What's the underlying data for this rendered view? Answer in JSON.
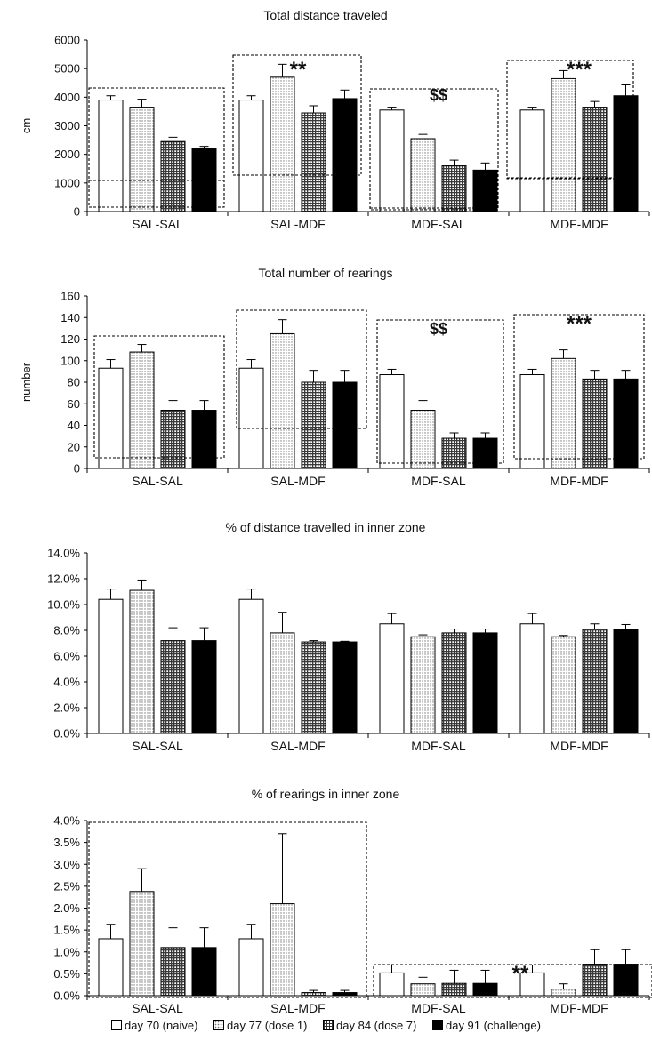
{
  "chart_data": [
    {
      "type": "bar",
      "title": "Total distance traveled",
      "ylabel": "cm",
      "ylim": [
        0,
        6000
      ],
      "yticks": [
        "0",
        "1000",
        "2000",
        "3000",
        "4000",
        "5000",
        "6000"
      ],
      "categories": [
        "SAL-SAL",
        "SAL-MDF",
        "MDF-SAL",
        "MDF-MDF"
      ],
      "series": [
        {
          "name": "day 70 (naive)",
          "values": [
            3900,
            3900,
            3550,
            3550
          ],
          "errors": [
            150,
            150,
            100,
            100
          ]
        },
        {
          "name": "day 77 (dose 1)",
          "values": [
            3650,
            4700,
            2550,
            4650
          ],
          "errors": [
            280,
            450,
            150,
            280
          ]
        },
        {
          "name": "day 84 (dose 7)",
          "values": [
            2450,
            3450,
            1600,
            3650
          ],
          "errors": [
            150,
            250,
            200,
            200
          ]
        },
        {
          "name": "day 91 (challenge)",
          "values": [
            2200,
            3950,
            1450,
            4050
          ],
          "errors": [
            80,
            300,
            250,
            380
          ]
        }
      ],
      "annotations": [
        {
          "text": "",
          "group": 0
        },
        {
          "text": "**",
          "group": 1
        },
        {
          "text": "$$",
          "group": 2
        },
        {
          "text": "***",
          "group": 3
        }
      ]
    },
    {
      "type": "bar",
      "title": "Total number of rearings",
      "ylabel": "number",
      "ylim": [
        0,
        160
      ],
      "yticks": [
        "0",
        "20",
        "40",
        "60",
        "80",
        "100",
        "120",
        "140",
        "160"
      ],
      "categories": [
        "SAL-SAL",
        "SAL-MDF",
        "MDF-SAL",
        "MDF-MDF"
      ],
      "series": [
        {
          "name": "day 70 (naive)",
          "values": [
            93,
            93,
            87,
            87
          ],
          "errors": [
            8,
            8,
            5,
            5
          ]
        },
        {
          "name": "day 77 (dose 1)",
          "values": [
            108,
            125,
            54,
            102
          ],
          "errors": [
            7,
            13,
            9,
            8
          ]
        },
        {
          "name": "day 84 (dose 7)",
          "values": [
            54,
            80,
            28,
            83
          ],
          "errors": [
            9,
            11,
            5,
            8
          ]
        },
        {
          "name": "day 91 (challenge)",
          "values": [
            54,
            80,
            28,
            83
          ],
          "errors": [
            9,
            11,
            5,
            8
          ]
        }
      ],
      "annotations": [
        {
          "text": "",
          "group": 0
        },
        {
          "text": "",
          "group": 1
        },
        {
          "text": "$$",
          "group": 2
        },
        {
          "text": "***",
          "group": 3
        }
      ]
    },
    {
      "type": "bar",
      "title": "% of distance travelled in inner zone",
      "ylabel": "",
      "ylim": [
        0,
        14
      ],
      "yticks": [
        "0.0%",
        "2.0%",
        "4.0%",
        "6.0%",
        "8.0%",
        "10.0%",
        "12.0%",
        "14.0%"
      ],
      "categories": [
        "SAL-SAL",
        "SAL-MDF",
        "MDF-SAL",
        "MDF-MDF"
      ],
      "series": [
        {
          "name": "day 70 (naive)",
          "values": [
            10.4,
            10.4,
            8.5,
            8.5
          ],
          "errors": [
            0.8,
            0.8,
            0.8,
            0.8
          ]
        },
        {
          "name": "day 77 (dose 1)",
          "values": [
            11.1,
            7.8,
            7.5,
            7.5
          ],
          "errors": [
            0.8,
            1.6,
            0.15,
            0.1
          ]
        },
        {
          "name": "day 84 (dose 7)",
          "values": [
            7.2,
            7.1,
            7.8,
            8.1
          ],
          "errors": [
            1.0,
            0.1,
            0.3,
            0.4
          ]
        },
        {
          "name": "day 91 (challenge)",
          "values": [
            7.2,
            7.1,
            7.8,
            8.1
          ],
          "errors": [
            1.0,
            0.05,
            0.3,
            0.35
          ]
        }
      ],
      "annotations": []
    },
    {
      "type": "bar",
      "title": "% of rearings in inner zone",
      "ylabel": "",
      "ylim": [
        0,
        4
      ],
      "yticks": [
        "0.0%",
        "0.5%",
        "1.0%",
        "1.5%",
        "2.0%",
        "2.5%",
        "3.0%",
        "3.5%",
        "4.0%"
      ],
      "categories": [
        "SAL-SAL",
        "SAL-MDF",
        "MDF-SAL",
        "MDF-MDF"
      ],
      "series": [
        {
          "name": "day 70 (naive)",
          "values": [
            1.3,
            1.3,
            0.52,
            0.52
          ],
          "errors": [
            0.33,
            0.33,
            0.18,
            0.18
          ]
        },
        {
          "name": "day 77 (dose 1)",
          "values": [
            2.38,
            2.1,
            0.27,
            0.15
          ],
          "errors": [
            0.52,
            1.6,
            0.15,
            0.12
          ]
        },
        {
          "name": "day 84 (dose 7)",
          "values": [
            1.1,
            0.07,
            0.28,
            0.72
          ],
          "errors": [
            0.45,
            0.05,
            0.3,
            0.33
          ]
        },
        {
          "name": "day 91 (challenge)",
          "values": [
            1.1,
            0.07,
            0.28,
            0.72
          ],
          "errors": [
            0.45,
            0.05,
            0.3,
            0.33
          ]
        }
      ],
      "annotations": [
        {
          "text": "**",
          "group": 3
        }
      ]
    }
  ],
  "legend": [
    {
      "label": "day 70 (naive)",
      "fill": "white"
    },
    {
      "label": "day 77 (dose 1)",
      "fill": "dots"
    },
    {
      "label": "day 84 (dose 7)",
      "fill": "grid"
    },
    {
      "label": "day 91 (challenge)",
      "fill": "black"
    }
  ],
  "colors": {
    "bar_outline": "#000000",
    "solid": "#000000",
    "background": "#ffffff"
  }
}
